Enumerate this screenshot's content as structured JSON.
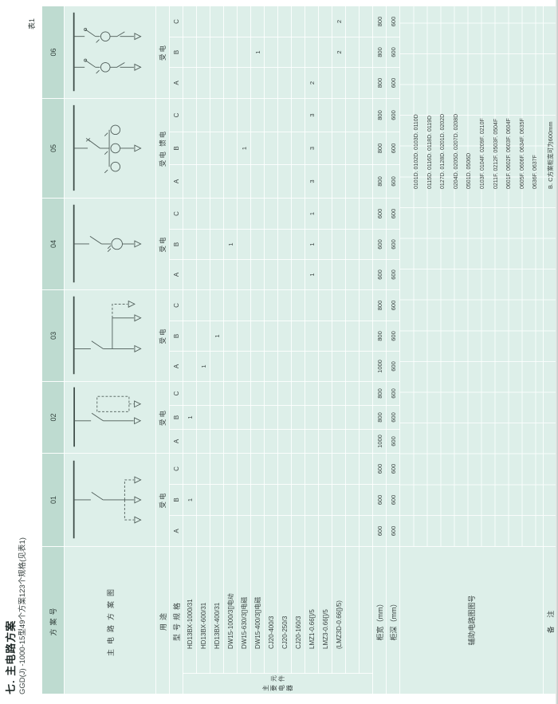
{
  "page": {
    "title": "七. 主电路方案",
    "subtitle": "GGD(J) -1000-15型49个方案123个规格(见表1)",
    "table_marker": "表1"
  },
  "colors": {
    "table_body_bg": "#ddefe9",
    "table_header_bg": "#bedbd0",
    "grid_line": "#ffffff",
    "text": "#3a4442"
  },
  "table": {
    "row_labels": {
      "scheme_no": "方案号",
      "diagram": "主电路方案图",
      "usage": "用途",
      "model_spec": "型号规格",
      "components_group": "主要电器元件",
      "cabinet_width": "柜宽（mm）",
      "cabinet_depth": "柜深（mm）",
      "aux_circuit_no": "辅助电路图图号",
      "remark": "备 注"
    },
    "schemes": [
      {
        "id": "01",
        "usage": "受电",
        "abc": [
          "A",
          "B",
          "C"
        ],
        "width": [
          "600",
          "600",
          "600"
        ],
        "depth": [
          "600",
          "600",
          "600"
        ]
      },
      {
        "id": "02",
        "usage": "受电",
        "abc": [
          "A",
          "B",
          "C"
        ],
        "width": [
          "1000",
          "800",
          "800"
        ],
        "depth": [
          "600",
          "600",
          "600"
        ]
      },
      {
        "id": "03",
        "usage": "受电",
        "abc": [
          "A",
          "B",
          "C"
        ],
        "width": [
          "1000",
          "800",
          "800"
        ],
        "depth": [
          "600",
          "600",
          "600"
        ]
      },
      {
        "id": "04",
        "usage": "受电",
        "abc": [
          "A",
          "B",
          "C"
        ],
        "width": [
          "600",
          "600",
          "600"
        ],
        "depth": [
          "600",
          "600",
          "600"
        ]
      },
      {
        "id": "05",
        "usage": "受电 馈电",
        "abc": [
          "A",
          "B",
          "C"
        ],
        "width": [
          "800",
          "800",
          "800"
        ],
        "depth": [
          "600",
          "600",
          "600"
        ]
      },
      {
        "id": "06",
        "usage": "受电",
        "abc": [
          "A",
          "B",
          "C"
        ],
        "width": [
          "800",
          "800",
          "800"
        ],
        "depth": [
          "600",
          "600",
          "600"
        ]
      }
    ],
    "models": [
      {
        "name": "HD13BX-1000/31",
        "marks": {
          "01": [
            "",
            "1",
            ""
          ],
          "02": [
            "",
            "1",
            ""
          ]
        }
      },
      {
        "name": "HD13BX-600/31",
        "marks": {
          "03": [
            "1",
            "",
            ""
          ]
        }
      },
      {
        "name": "HD13BX-400/31",
        "marks": {
          "03": [
            "",
            "1",
            ""
          ]
        }
      },
      {
        "name": "DW15-1000/3[]电动",
        "marks": {
          "04": [
            "",
            "1",
            ""
          ]
        }
      },
      {
        "name": "DW15-630/3[]电磁",
        "marks": {
          "05": [
            "",
            "1",
            ""
          ]
        }
      },
      {
        "name": "DW15-400/3[]电磁",
        "marks": {
          "06": [
            "",
            "1",
            ""
          ]
        }
      },
      {
        "name": "CJ20-400/3",
        "marks": {}
      },
      {
        "name": "CJ20-250/3",
        "marks": {}
      },
      {
        "name": "CJ20-160/3",
        "marks": {}
      },
      {
        "name": "LMZ1-0.66[]/5",
        "marks": {
          "04": [
            "1",
            "1",
            "1"
          ],
          "05": [
            "3",
            "3",
            "3"
          ],
          "06": [
            "2",
            "",
            ""
          ]
        }
      },
      {
        "name": "LMZ3-0.66[]/5",
        "marks": {}
      },
      {
        "name": "(LMZ3D-0.66[]/5)",
        "marks": {
          "06": [
            "",
            "2",
            "2"
          ]
        }
      },
      {
        "name": "",
        "marks": {}
      },
      {
        "name": "",
        "marks": {}
      }
    ],
    "aux_lines": [
      "0101D. 0102D. 0103D. 0110D",
      "0115D. 0116D. 0118D. 0119D",
      "0127D. 0128D. 0201D. 0202D",
      "0204D. 0205D. 0207D. 0208D",
      "0501D. 0506D",
      "0103F. 0104F. 0209F. 0210F",
      "0211F. 0212F. 0503F. 0504F",
      "0601F. 0602F. 0603F. 0604F",
      "0605F. 0606F. 0634F. 0635F",
      "0636F. 0637F"
    ],
    "remark_text": "B. C方案柜宽可为600mm",
    "diagram_names": {
      "01": "incoming-switch-with-three-feeders-diagram",
      "02": "incoming-switch-dashed-section-feeder-diagram",
      "03": "incoming-switch-two-feeders-diagram",
      "04": "incoming-switch-single-ct-feeder-diagram",
      "05": "incoming-breaker-three-ct-feeder-diagram",
      "06": "double-incoming-switch-ct-feeders-diagram"
    }
  }
}
